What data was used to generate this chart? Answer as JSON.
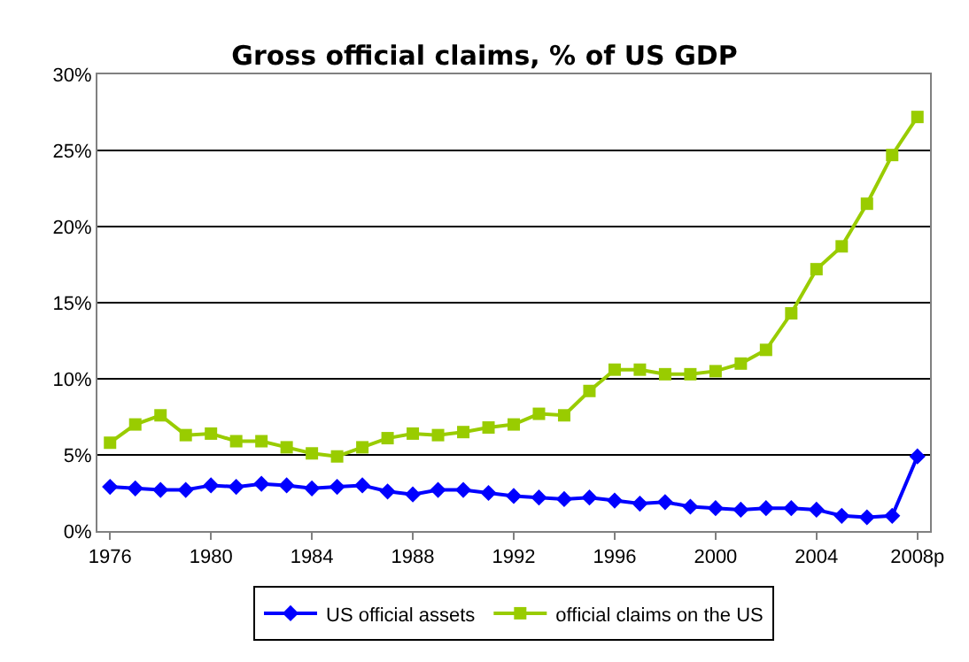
{
  "chart_data": {
    "type": "line",
    "title": "Gross official claims, % of US GDP",
    "categories": [
      "1976",
      null,
      null,
      null,
      "1980",
      null,
      null,
      null,
      "1984",
      null,
      null,
      null,
      "1988",
      null,
      null,
      null,
      "1992",
      null,
      null,
      null,
      "1996",
      null,
      null,
      null,
      "2000",
      null,
      null,
      null,
      "2004",
      null,
      null,
      null,
      "2008p"
    ],
    "series": [
      {
        "name": "US official assets",
        "color": "#0000ff",
        "marker": "diamond",
        "values": [
          2.9,
          2.8,
          2.7,
          2.7,
          3.0,
          2.9,
          3.1,
          3.0,
          2.8,
          2.9,
          3.0,
          2.6,
          2.4,
          2.7,
          2.7,
          2.5,
          2.3,
          2.2,
          2.1,
          2.2,
          2.0,
          1.8,
          1.9,
          1.6,
          1.5,
          1.4,
          1.5,
          1.5,
          1.4,
          1.0,
          0.9,
          1.0,
          4.9
        ]
      },
      {
        "name": "official claims on the US",
        "color": "#99cc00",
        "marker": "square",
        "values": [
          5.8,
          7.0,
          7.6,
          6.3,
          6.4,
          5.9,
          5.9,
          5.5,
          5.1,
          4.9,
          5.5,
          6.1,
          6.4,
          6.3,
          6.5,
          6.8,
          7.0,
          7.7,
          7.6,
          9.2,
          10.6,
          10.6,
          10.3,
          10.3,
          10.5,
          11.0,
          11.9,
          14.3,
          17.2,
          18.7,
          21.5,
          24.7,
          27.2
        ]
      }
    ],
    "ylim": [
      0,
      30
    ],
    "yticks": [
      {
        "value": 0,
        "label": "0%"
      },
      {
        "value": 5,
        "label": "5%"
      },
      {
        "value": 10,
        "label": "10%"
      },
      {
        "value": 15,
        "label": "15%"
      },
      {
        "value": 20,
        "label": "20%"
      },
      {
        "value": 25,
        "label": "25%"
      },
      {
        "value": 30,
        "label": "30%"
      }
    ],
    "grid": "y",
    "legend": "bottom",
    "line_style": "solid"
  }
}
